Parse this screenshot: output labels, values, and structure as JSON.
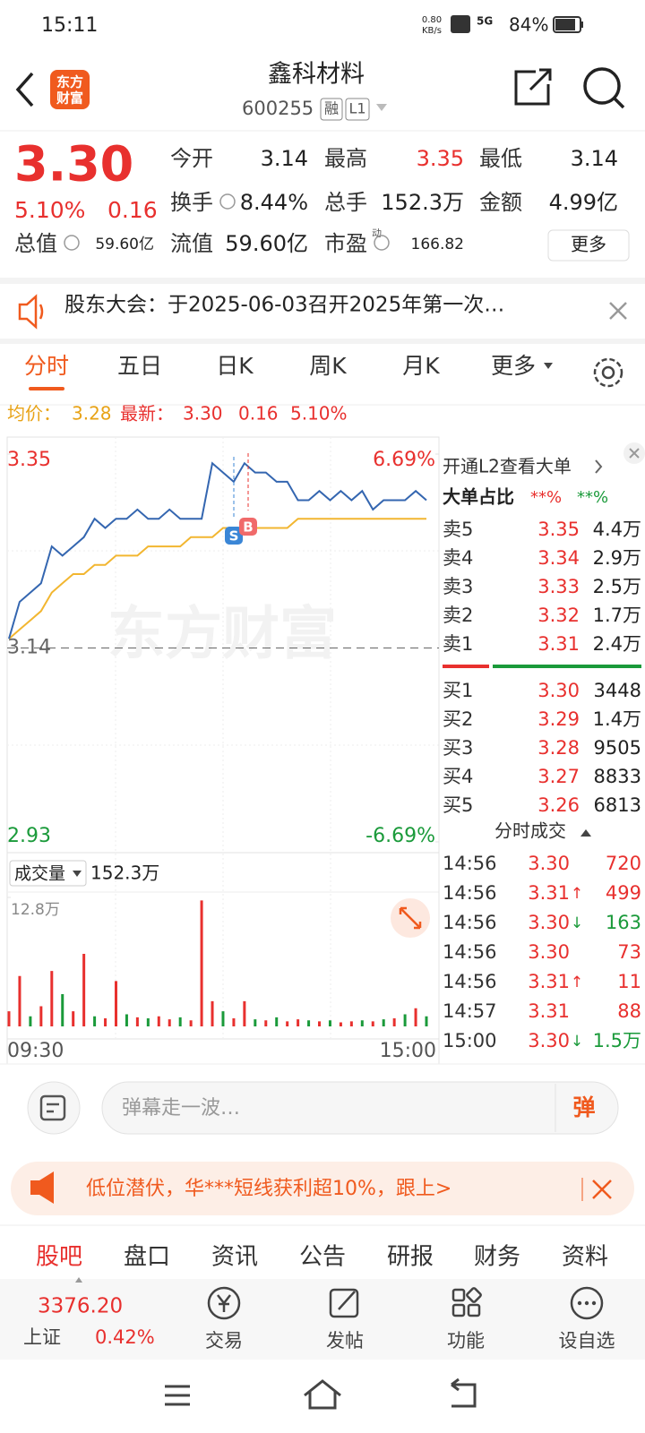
{
  "status_bar": {
    "time": "15:11",
    "net_speed": [
      "0.80",
      "KB/s"
    ],
    "signal": "5G",
    "battery": "84%"
  },
  "header": {
    "logo": [
      "东方",
      "财富"
    ],
    "title": "鑫科材料",
    "code": "600255",
    "badges": [
      "融",
      "L1"
    ]
  },
  "quote": {
    "price": "3.30",
    "change_pct": "5.10%",
    "change": "0.16",
    "stats": [
      {
        "label": "今开",
        "value": "3.14"
      },
      {
        "label": "最高",
        "value": "3.35",
        "color": "#e8302e"
      },
      {
        "label": "最低",
        "value": "3.14"
      },
      {
        "label": "换手",
        "value": "8.44%"
      },
      {
        "label": "总手",
        "value": "152.3万"
      },
      {
        "label": "金额",
        "value": "4.99亿"
      },
      {
        "label": "总值",
        "value": "59.60亿"
      },
      {
        "label": "流值",
        "value": "59.60亿"
      },
      {
        "label": "市盈",
        "sup": "动",
        "value": "166.82"
      }
    ],
    "more": "更多"
  },
  "notice": "股东大会：于2025-06-03召开2025年第一次…",
  "tabs": [
    "分时",
    "五日",
    "日K",
    "周K",
    "月K",
    "更多"
  ],
  "summary": {
    "avg_label": "均价：",
    "avg": "3.28",
    "last_label": "最新：",
    "last": "3.30",
    "change": "0.16",
    "change_pct": "5.10%"
  },
  "intraday": {
    "type": "line",
    "ylim": [
      2.93,
      3.35
    ],
    "yticks": [
      3.35,
      3.14,
      2.93
    ],
    "y2lim": [
      -6.69,
      6.69
    ],
    "y2ticks": [
      {
        "value": 6.69,
        "label": "6.69%"
      },
      {
        "value": -6.69,
        "label": "-6.69%"
      }
    ],
    "watermark": "东方财富",
    "markers": [
      "S",
      "B"
    ],
    "price": {
      "color": "#3466b0",
      "values": [
        3.15,
        3.19,
        3.2,
        3.21,
        3.25,
        3.24,
        3.25,
        3.26,
        3.28,
        3.27,
        3.28,
        3.28,
        3.29,
        3.28,
        3.28,
        3.29,
        3.28,
        3.28,
        3.28,
        3.34,
        3.33,
        3.32,
        3.34,
        3.33,
        3.33,
        3.32,
        3.32,
        3.3,
        3.3,
        3.31,
        3.3,
        3.31,
        3.3,
        3.31,
        3.29,
        3.3,
        3.3,
        3.3,
        3.31,
        3.3
      ]
    },
    "avg": {
      "color": "#f2b630",
      "values": [
        3.15,
        3.16,
        3.17,
        3.18,
        3.2,
        3.21,
        3.22,
        3.22,
        3.23,
        3.23,
        3.24,
        3.24,
        3.24,
        3.25,
        3.25,
        3.25,
        3.25,
        3.26,
        3.26,
        3.26,
        3.27,
        3.27,
        3.27,
        3.27,
        3.27,
        3.27,
        3.27,
        3.28,
        3.28,
        3.28,
        3.28,
        3.28,
        3.28,
        3.28,
        3.28,
        3.28,
        3.28,
        3.28,
        3.28,
        3.28
      ]
    },
    "x_labels": [
      "09:30",
      "15:00"
    ]
  },
  "volume": {
    "label": "成交量",
    "total": "152.3万",
    "ylim": [
      0,
      12.8
    ],
    "yticks": [
      {
        "value": 12.8,
        "label": "12.8万"
      }
    ],
    "values": [
      1.5,
      5.0,
      1.0,
      2.0,
      5.5,
      3.2,
      1.5,
      7.2,
      1.0,
      0.8,
      4.5,
      1.2,
      0.9,
      0.8,
      1.0,
      0.7,
      0.9,
      0.6,
      12.5,
      2.5,
      1.5,
      0.8,
      2.5,
      0.7,
      0.6,
      0.9,
      0.5,
      0.7,
      0.6,
      0.5,
      0.6,
      0.4,
      0.5,
      0.6,
      0.5,
      0.7,
      0.8,
      1.2,
      1.8,
      1.0
    ],
    "colors": [
      "#e8302e",
      "#e8302e",
      "#1a9a3a",
      "#e8302e",
      "#e8302e",
      "#1a9a3a",
      "#e8302e",
      "#e8302e",
      "#1a9a3a",
      "#e8302e",
      "#e8302e",
      "#1a9a3a",
      "#e8302e",
      "#1a9a3a",
      "#e8302e",
      "#e8302e",
      "#1a9a3a",
      "#e8302e",
      "#e8302e",
      "#e8302e",
      "#1a9a3a",
      "#e8302e",
      "#e8302e",
      "#1a9a3a",
      "#e8302e",
      "#1a9a3a",
      "#e8302e",
      "#e8302e",
      "#1a9a3a",
      "#e8302e",
      "#1a9a3a",
      "#e8302e",
      "#e8302e",
      "#1a9a3a",
      "#e8302e",
      "#1a9a3a",
      "#e8302e",
      "#1a9a3a",
      "#e8302e",
      "#1a9a3a"
    ]
  },
  "order_book": {
    "l2": "开通L2查看大单",
    "ratio_label": "大单占比",
    "ratio_buy": "**%",
    "ratio_sell": "**%",
    "asks": [
      [
        "卖5",
        "3.35",
        "4.4万"
      ],
      [
        "卖4",
        "3.34",
        "2.9万"
      ],
      [
        "卖3",
        "3.33",
        "2.5万"
      ],
      [
        "卖2",
        "3.32",
        "1.7万"
      ],
      [
        "卖1",
        "3.31",
        "2.4万"
      ]
    ],
    "bids": [
      [
        "买1",
        "3.30",
        "3448"
      ],
      [
        "买2",
        "3.29",
        "1.4万"
      ],
      [
        "买3",
        "3.28",
        "9505"
      ],
      [
        "买4",
        "3.27",
        "8833"
      ],
      [
        "买5",
        "3.26",
        "6813"
      ]
    ]
  },
  "trades": {
    "title": "分时成交",
    "rows": [
      {
        "time": "14:56",
        "price": "3.30",
        "volume": "720"
      },
      {
        "time": "14:56",
        "price": "3.31",
        "arrow": "↑",
        "volume": "499"
      },
      {
        "time": "14:56",
        "price": "3.30",
        "arrow": "↓",
        "volume": "163"
      },
      {
        "time": "14:56",
        "price": "3.30",
        "volume": "73"
      },
      {
        "time": "14:56",
        "price": "3.31",
        "arrow": "↑",
        "volume": "11"
      },
      {
        "time": "14:57",
        "price": "3.31",
        "volume": "88"
      },
      {
        "time": "15:00",
        "price": "3.30",
        "arrow": "↓",
        "volume": "1.5万"
      }
    ]
  },
  "danmu": {
    "placeholder": "弹幕走一波…",
    "button": "弹"
  },
  "promo": "低位潜伏，华***短线获利超10%，跟上>",
  "bottom_tabs": [
    "股吧",
    "盘口",
    "资讯",
    "公告",
    "研报",
    "财务",
    "资料"
  ],
  "footer": {
    "index_value": "3376.20",
    "index_name": "上证",
    "index_change": "0.42%",
    "nav": [
      "交易",
      "发帖",
      "功能",
      "设自选"
    ]
  }
}
